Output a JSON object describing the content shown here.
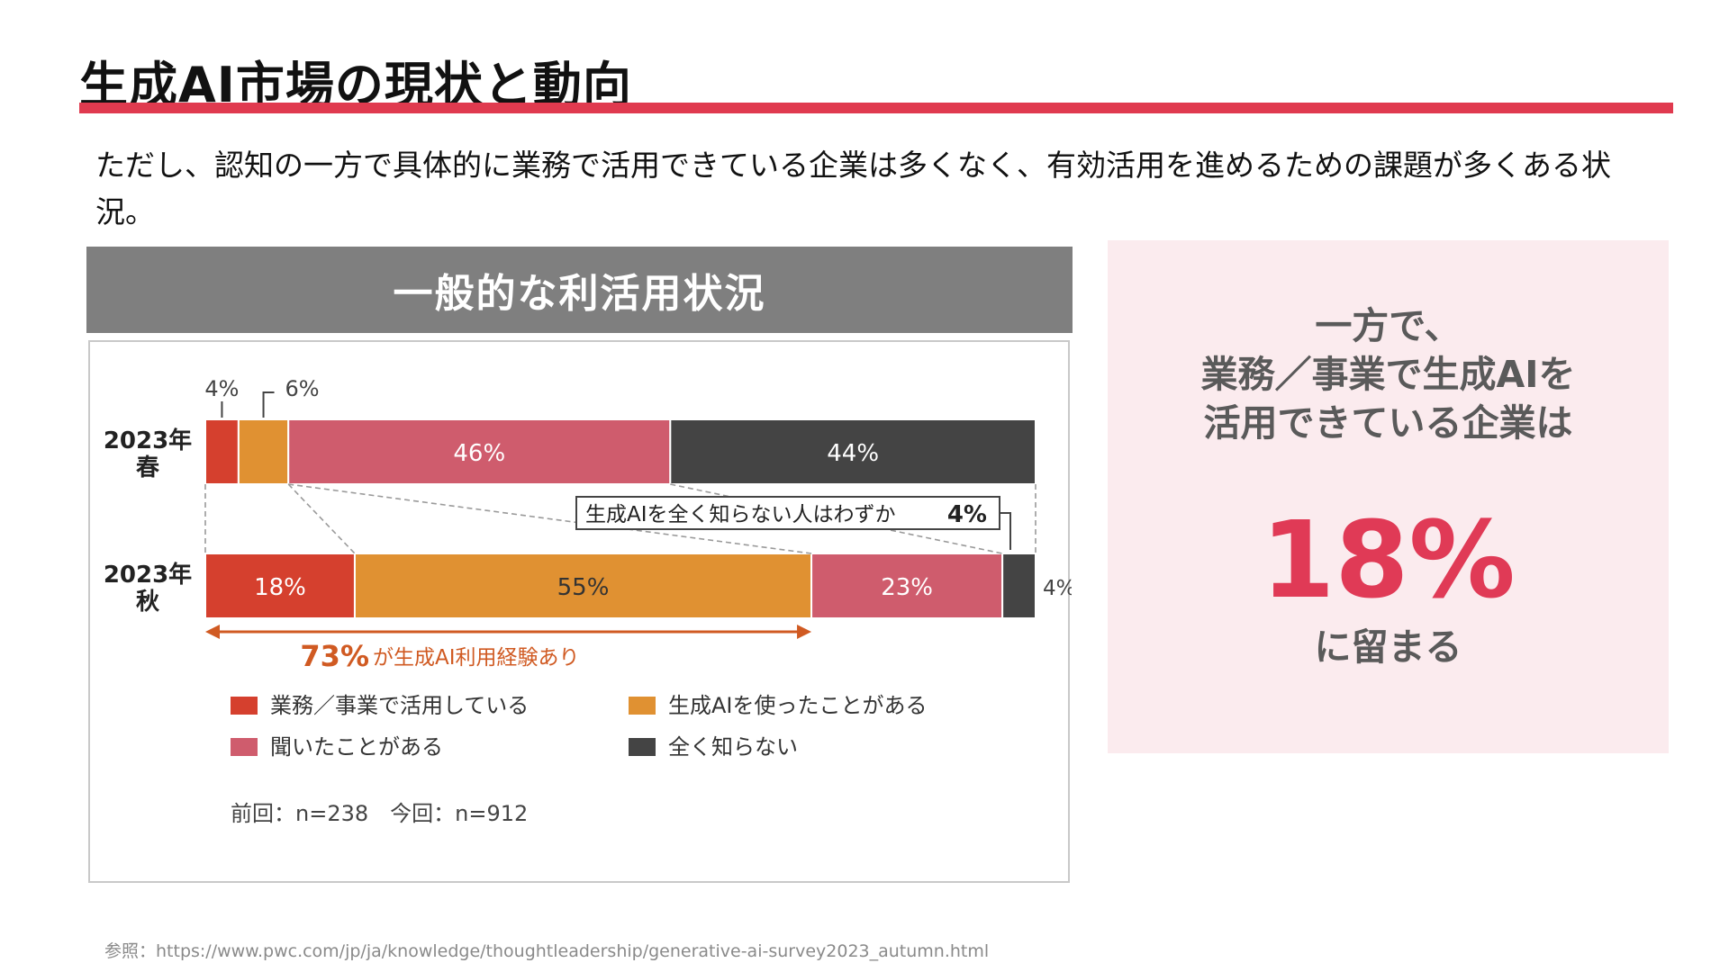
{
  "slide": {
    "title": "生成AI市場の現状と動向",
    "accent_color": "#e03a4f",
    "intro_text": "ただし、認知の一方で具体的に業務で活用できている企業は多くなく、有効活用を進めるための課題が多くある状況。",
    "panel_header": "一般的な利活用状況",
    "source": "参照：https://www.pwc.com/jp/ja/knowledge/thoughtleadership/generative-ai-survey2023_autumn.html"
  },
  "highlight": {
    "lines": [
      "一方で、",
      "業務／事業で生成AIを",
      "活用できている企業は"
    ],
    "value": "18%",
    "tail": "に留まる",
    "value_color": "#e03a56"
  },
  "chart_data": {
    "type": "bar",
    "orientation": "horizontal",
    "stacked": true,
    "percent": true,
    "categories": [
      "2023年 春",
      "2023年 秋"
    ],
    "category_lines": [
      [
        "2023年",
        "春"
      ],
      [
        "2023年",
        "秋"
      ]
    ],
    "series": [
      {
        "name": "業務／事業で活用している",
        "values": [
          4,
          18
        ],
        "color": "#d5402e"
      },
      {
        "name": "生成AIを使ったことがある",
        "values": [
          6,
          55
        ],
        "color": "#e09132"
      },
      {
        "name": "聞いたことがある",
        "values": [
          46,
          23
        ],
        "color": "#cf5c6d"
      },
      {
        "name": "全く知らない",
        "values": [
          44,
          4
        ],
        "color": "#444444"
      }
    ],
    "labels": [
      [
        "4%",
        "6%",
        "46%",
        "44%"
      ],
      [
        "18%",
        "55%",
        "23%",
        "4%"
      ]
    ],
    "annotations": {
      "callout_prefix": "生成AIを全く知らない人はわずか",
      "callout_value": "4%",
      "arrow_value": "73%",
      "arrow_text": "が生成AI利用経験あり",
      "arrow_color": "#d05a22"
    },
    "sample_note": "前回：n=238　今回：n=912",
    "xlim": [
      0,
      100
    ],
    "legend_position": "bottom"
  }
}
